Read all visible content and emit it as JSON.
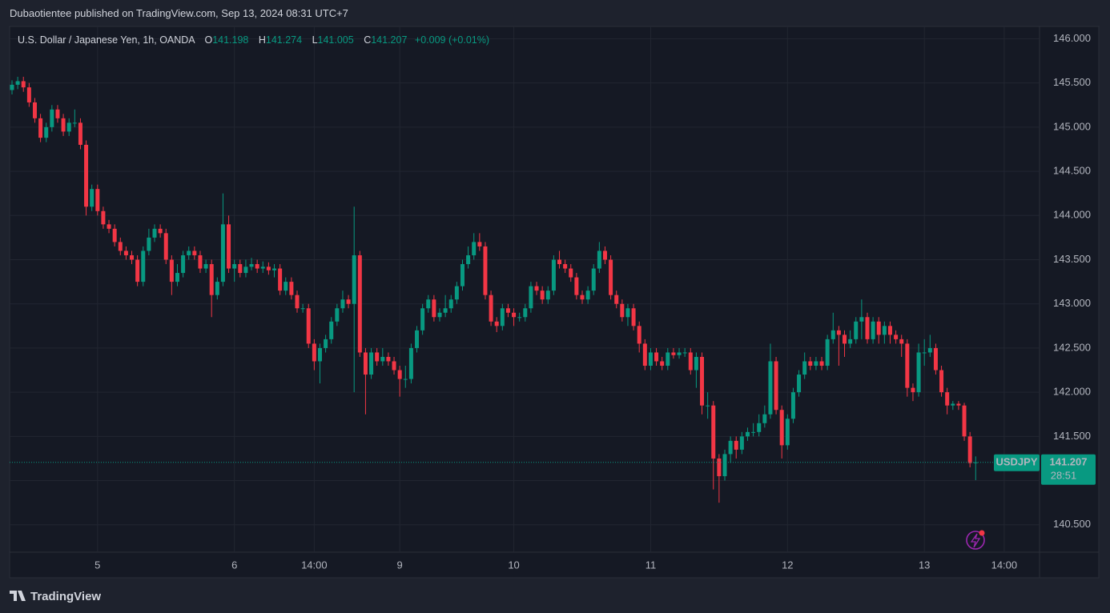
{
  "header": "Dubaotientee published on TradingView.com, Sep 13, 2024 08:31 UTC+7",
  "footer": "TradingView",
  "chart_data": {
    "type": "candlestick",
    "title": "U.S. Dollar / Japanese Yen, 1h, OANDA",
    "legend_labels": [
      "O",
      "H",
      "L",
      "C"
    ],
    "change": "+0.009 (+0.01%)",
    "symbol": "USDJPY",
    "countdown": "28:51",
    "up_color": "#089981",
    "down_color": "#f23645",
    "grid": true,
    "ylim": [
      140.19,
      146.14
    ],
    "yticks": [
      {
        "value": 140.5,
        "label": "140.500"
      },
      {
        "value": 141,
        "label": "141.000"
      },
      {
        "value": 141.5,
        "label": "141.500"
      },
      {
        "value": 142,
        "label": "142.000"
      },
      {
        "value": 142.5,
        "label": "142.500"
      },
      {
        "value": 143,
        "label": "143.000"
      },
      {
        "value": 143.5,
        "label": "143.500"
      },
      {
        "value": 144,
        "label": "144.000"
      },
      {
        "value": 144.5,
        "label": "144.500"
      },
      {
        "value": 145,
        "label": "145.000"
      },
      {
        "value": 145.5,
        "label": "145.500"
      },
      {
        "value": 146,
        "label": "146.000"
      }
    ],
    "categories": [
      null,
      null,
      null,
      null,
      null,
      null,
      null,
      null,
      null,
      null,
      null,
      null,
      null,
      null,
      null,
      "5",
      null,
      null,
      null,
      null,
      null,
      null,
      null,
      null,
      null,
      null,
      null,
      null,
      null,
      null,
      null,
      null,
      null,
      null,
      null,
      null,
      null,
      null,
      null,
      "6",
      null,
      null,
      null,
      null,
      null,
      null,
      null,
      null,
      null,
      null,
      null,
      null,
      null,
      "14:00",
      null,
      null,
      null,
      null,
      null,
      null,
      null,
      null,
      null,
      null,
      null,
      null,
      null,
      null,
      "9",
      null,
      null,
      null,
      null,
      null,
      null,
      null,
      null,
      null,
      null,
      null,
      null,
      null,
      null,
      null,
      null,
      null,
      null,
      null,
      "10",
      null,
      null,
      null,
      null,
      null,
      null,
      null,
      null,
      null,
      null,
      null,
      null,
      null,
      null,
      null,
      null,
      null,
      null,
      null,
      null,
      null,
      null,
      null,
      "11",
      null,
      null,
      null,
      null,
      null,
      null,
      null,
      null,
      null,
      null,
      null,
      null,
      null,
      null,
      null,
      null,
      null,
      null,
      null,
      null,
      null,
      null,
      null,
      "12",
      null,
      null,
      null,
      null,
      null,
      null,
      null,
      null,
      null,
      null,
      null,
      null,
      null,
      null,
      null,
      null,
      null,
      null,
      null,
      null,
      null,
      null,
      null,
      "13",
      null,
      null,
      null,
      null,
      null,
      null,
      null,
      null,
      null,
      null,
      null,
      null,
      null,
      "14:00",
      null
    ],
    "open": [
      145.42,
      145.48,
      145.52,
      145.45,
      145.28,
      145.1,
      144.88,
      145,
      145.2,
      145.1,
      144.95,
      145.05,
      145.05,
      144.8,
      144.1,
      144.3,
      144.05,
      143.9,
      143.85,
      143.7,
      143.6,
      143.55,
      143.5,
      143.25,
      143.6,
      143.75,
      143.85,
      143.8,
      143.5,
      143.25,
      143.35,
      143.55,
      143.6,
      143.55,
      143.4,
      143.45,
      143.1,
      143.25,
      143.9,
      143.4,
      143.45,
      143.35,
      143.42,
      143.45,
      143.4,
      143.42,
      143.38,
      143.4,
      143.15,
      143.25,
      143.1,
      142.95,
      142.95,
      142.55,
      142.35,
      142.5,
      142.6,
      142.8,
      142.95,
      143.05,
      143,
      143.55,
      142.45,
      142.2,
      142.45,
      142.35,
      142.4,
      142.35,
      142.25,
      142.15,
      142.15,
      142.5,
      142.7,
      142.95,
      143.05,
      142.85,
      142.9,
      142.95,
      143.05,
      143.2,
      143.45,
      143.55,
      143.7,
      143.65,
      143.1,
      142.8,
      142.75,
      142.95,
      142.9,
      142.85,
      142.85,
      142.95,
      143.2,
      143.15,
      143.05,
      143.15,
      143.5,
      143.45,
      143.4,
      143.3,
      143.1,
      143.05,
      143.15,
      143.4,
      143.6,
      143.5,
      143.1,
      143,
      142.85,
      142.95,
      142.75,
      142.55,
      142.3,
      142.45,
      142.35,
      142.3,
      142.45,
      142.42,
      142.45,
      142.45,
      142.25,
      142.4,
      141.85,
      141.85,
      141.25,
      141.05,
      141.3,
      141.45,
      141.35,
      141.5,
      141.55,
      141.55,
      141.65,
      141.75,
      142.35,
      141.8,
      141.4,
      141.7,
      142,
      142.2,
      142.35,
      142.3,
      142.35,
      142.3,
      142.6,
      142.7,
      142.65,
      142.55,
      142.6,
      142.8,
      142.85,
      142.6,
      142.8,
      142.65,
      142.75,
      142.65,
      142.6,
      142.55,
      142.05,
      142,
      142.45,
      142.45,
      142.5,
      142.25,
      142,
      141.85,
      141.87,
      141.85,
      141.5,
      141.198,
      null,
      null,
      null,
      null,
      null,
      null
    ],
    "high": [
      145.53,
      145.57,
      145.57,
      145.5,
      145.33,
      145.15,
      145.05,
      145.25,
      145.25,
      145.15,
      145.1,
      145.2,
      145.1,
      144.85,
      144.35,
      144.35,
      144.1,
      143.95,
      143.9,
      143.75,
      143.65,
      143.6,
      143.55,
      143.65,
      143.85,
      143.9,
      143.9,
      143.85,
      143.55,
      143.45,
      143.6,
      143.65,
      143.65,
      143.6,
      143.5,
      143.5,
      143.3,
      144.25,
      144,
      143.5,
      143.5,
      143.5,
      143.52,
      143.5,
      143.48,
      143.47,
      143.45,
      143.45,
      143.3,
      143.3,
      143.15,
      143,
      143,
      142.6,
      142.55,
      142.65,
      142.85,
      143,
      143.15,
      143.1,
      144.1,
      143.6,
      142.5,
      142.5,
      142.5,
      142.5,
      142.45,
      142.4,
      142.3,
      142.3,
      142.55,
      142.75,
      143,
      143.1,
      143.1,
      142.95,
      143.1,
      143.1,
      143.25,
      143.5,
      143.65,
      143.8,
      143.8,
      143.7,
      143.15,
      142.85,
      143,
      143,
      142.95,
      142.9,
      143,
      143.25,
      143.25,
      143.2,
      143.2,
      143.55,
      143.6,
      143.5,
      143.45,
      143.35,
      143.15,
      143.2,
      143.45,
      143.7,
      143.65,
      143.55,
      143.15,
      143.05,
      143,
      143,
      142.8,
      142.6,
      142.5,
      142.5,
      142.4,
      142.5,
      142.5,
      142.5,
      142.5,
      142.5,
      142.45,
      142.45,
      142,
      141.9,
      141.3,
      141.35,
      141.5,
      141.5,
      141.55,
      141.6,
      141.65,
      141.75,
      141.85,
      142.55,
      142.4,
      141.85,
      141.75,
      142.05,
      142.25,
      142.45,
      142.4,
      142.4,
      142.4,
      142.65,
      142.9,
      142.75,
      142.7,
      142.7,
      142.85,
      143.05,
      142.9,
      142.85,
      142.85,
      142.8,
      142.8,
      142.7,
      142.65,
      142.6,
      142.1,
      142.55,
      142.6,
      142.65,
      142.55,
      142.3,
      142.05,
      141.9,
      141.9,
      141.88,
      141.55,
      141.274,
      null,
      null,
      null,
      null,
      null,
      null
    ],
    "low": [
      145.37,
      145.43,
      145.4,
      145.23,
      145.05,
      144.83,
      144.83,
      144.95,
      145.05,
      144.9,
      144.9,
      145,
      144.75,
      144,
      144.05,
      144,
      143.85,
      143.8,
      143.65,
      143.55,
      143.5,
      143.45,
      143.2,
      143.2,
      143.55,
      143.7,
      143.75,
      143.45,
      143.1,
      143.2,
      143.3,
      143.5,
      143.5,
      143.35,
      143.35,
      142.85,
      143.05,
      143.2,
      143.35,
      143.25,
      143.3,
      143.3,
      143.38,
      143.35,
      143.35,
      143.33,
      143.3,
      143.1,
      143.1,
      143.05,
      142.9,
      142.9,
      142.5,
      142.25,
      142.1,
      142.45,
      142.55,
      142.75,
      142.9,
      142.95,
      142,
      142.4,
      141.75,
      142.15,
      142.3,
      142.3,
      142.3,
      142.2,
      141.95,
      142.05,
      142.1,
      142.45,
      142.65,
      142.9,
      142.8,
      142.8,
      142.85,
      142.9,
      143,
      143.15,
      143.4,
      143.5,
      143.6,
      143.05,
      142.75,
      142.68,
      142.7,
      142.85,
      142.75,
      142.8,
      142.8,
      142.9,
      143.1,
      143,
      143,
      143.1,
      143.4,
      143.35,
      143.25,
      143.05,
      143,
      143,
      143.1,
      143.35,
      143.45,
      143.05,
      142.95,
      142.8,
      142.75,
      142.7,
      142.45,
      142.25,
      142.25,
      142.3,
      142.25,
      142.25,
      142.38,
      142.38,
      142.4,
      142.2,
      142.05,
      141.75,
      141.7,
      140.9,
      140.75,
      141,
      141.2,
      141.25,
      141.3,
      141.45,
      141.5,
      141.5,
      141.6,
      141.7,
      141.75,
      141.25,
      141.35,
      141.65,
      141.95,
      142.15,
      142.25,
      142.25,
      142.25,
      142.25,
      142.55,
      142.3,
      142.4,
      142.5,
      142.55,
      142.6,
      142.55,
      142.55,
      142.55,
      142.55,
      142.55,
      142.55,
      142.4,
      141.95,
      141.9,
      141.95,
      142.3,
      142.4,
      142.2,
      141.95,
      141.75,
      141.8,
      141.8,
      141.45,
      141.15,
      141.005,
      null,
      null,
      null,
      null,
      null,
      null
    ],
    "close": [
      145.48,
      145.52,
      145.45,
      145.28,
      145.1,
      144.88,
      145,
      145.2,
      145.1,
      144.95,
      145.05,
      145.05,
      144.8,
      144.1,
      144.3,
      144.05,
      143.9,
      143.85,
      143.7,
      143.6,
      143.55,
      143.5,
      143.25,
      143.6,
      143.75,
      143.85,
      143.8,
      143.5,
      143.25,
      143.35,
      143.55,
      143.6,
      143.55,
      143.4,
      143.45,
      143.1,
      143.25,
      143.9,
      143.4,
      143.45,
      143.35,
      143.42,
      143.45,
      143.4,
      143.42,
      143.38,
      143.4,
      143.15,
      143.25,
      143.1,
      142.95,
      142.95,
      142.55,
      142.35,
      142.5,
      142.6,
      142.8,
      142.95,
      143.05,
      143,
      143.55,
      142.45,
      142.2,
      142.45,
      142.35,
      142.4,
      142.35,
      142.25,
      142.15,
      142.15,
      142.5,
      142.7,
      142.95,
      143.05,
      142.85,
      142.9,
      142.95,
      143.05,
      143.2,
      143.45,
      143.55,
      143.7,
      143.65,
      143.1,
      142.8,
      142.75,
      142.95,
      142.9,
      142.85,
      142.85,
      142.95,
      143.2,
      143.15,
      143.05,
      143.15,
      143.5,
      143.45,
      143.4,
      143.3,
      143.1,
      143.05,
      143.15,
      143.4,
      143.6,
      143.5,
      143.1,
      143,
      142.85,
      142.95,
      142.75,
      142.55,
      142.3,
      142.45,
      142.35,
      142.3,
      142.45,
      142.42,
      142.45,
      142.45,
      142.25,
      142.4,
      141.85,
      141.85,
      141.25,
      141.05,
      141.3,
      141.45,
      141.35,
      141.5,
      141.55,
      141.55,
      141.65,
      141.75,
      142.35,
      141.8,
      141.4,
      141.7,
      142,
      142.2,
      142.35,
      142.3,
      142.35,
      142.3,
      142.6,
      142.7,
      142.65,
      142.55,
      142.6,
      142.8,
      142.85,
      142.6,
      142.8,
      142.65,
      142.75,
      142.65,
      142.6,
      142.55,
      142.05,
      142,
      142.45,
      142.45,
      142.5,
      142.25,
      142,
      141.85,
      141.87,
      141.85,
      141.5,
      141.198,
      141.207,
      null,
      null,
      null,
      null,
      null,
      null
    ]
  }
}
